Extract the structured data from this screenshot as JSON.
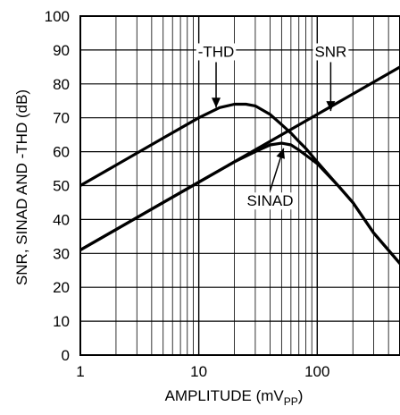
{
  "chart_data": {
    "type": "line",
    "title": "",
    "xlabel_main": "AMPLITUDE (mV",
    "xlabel_sub": "PP",
    "xlabel_close": ")",
    "ylabel": "SNR, SINAD AND -THD (dB)",
    "xscale": "log",
    "xlim": [
      1,
      500
    ],
    "ylim": [
      0,
      100
    ],
    "grid": true,
    "x_ticks": [
      {
        "value": 1,
        "label": "1"
      },
      {
        "value": 10,
        "label": "10"
      },
      {
        "value": 100,
        "label": "100"
      }
    ],
    "y_ticks": [
      0,
      10,
      20,
      30,
      40,
      50,
      60,
      70,
      80,
      90,
      100
    ],
    "series": [
      {
        "name": "SNR",
        "label_position": [
          130,
          88
        ],
        "arrow_to": [
          130,
          72
        ],
        "x": [
          1,
          10,
          100,
          500
        ],
        "y": [
          31,
          51,
          71,
          85
        ]
      },
      {
        "name": "-THD",
        "label_position": [
          14,
          88
        ],
        "arrow_to": [
          14,
          73
        ],
        "x": [
          1,
          5,
          10,
          15,
          20,
          25,
          30,
          40,
          50,
          60,
          70,
          80,
          100,
          150,
          200,
          300,
          500
        ],
        "y": [
          50,
          64,
          70,
          73,
          74,
          74,
          73.5,
          71,
          68,
          65.5,
          63,
          61,
          57,
          50,
          45,
          36,
          27
        ]
      },
      {
        "name": "SINAD",
        "label_position": [
          40,
          44
        ],
        "arrow_to": [
          52,
          61
        ],
        "x": [
          1,
          5,
          10,
          20,
          30,
          40,
          50,
          60,
          70,
          80,
          100,
          150,
          200,
          300,
          500
        ],
        "y": [
          31,
          45,
          51,
          57,
          60,
          62,
          62.5,
          62,
          60.5,
          59,
          56.5,
          50,
          45,
          36,
          27
        ]
      }
    ]
  }
}
